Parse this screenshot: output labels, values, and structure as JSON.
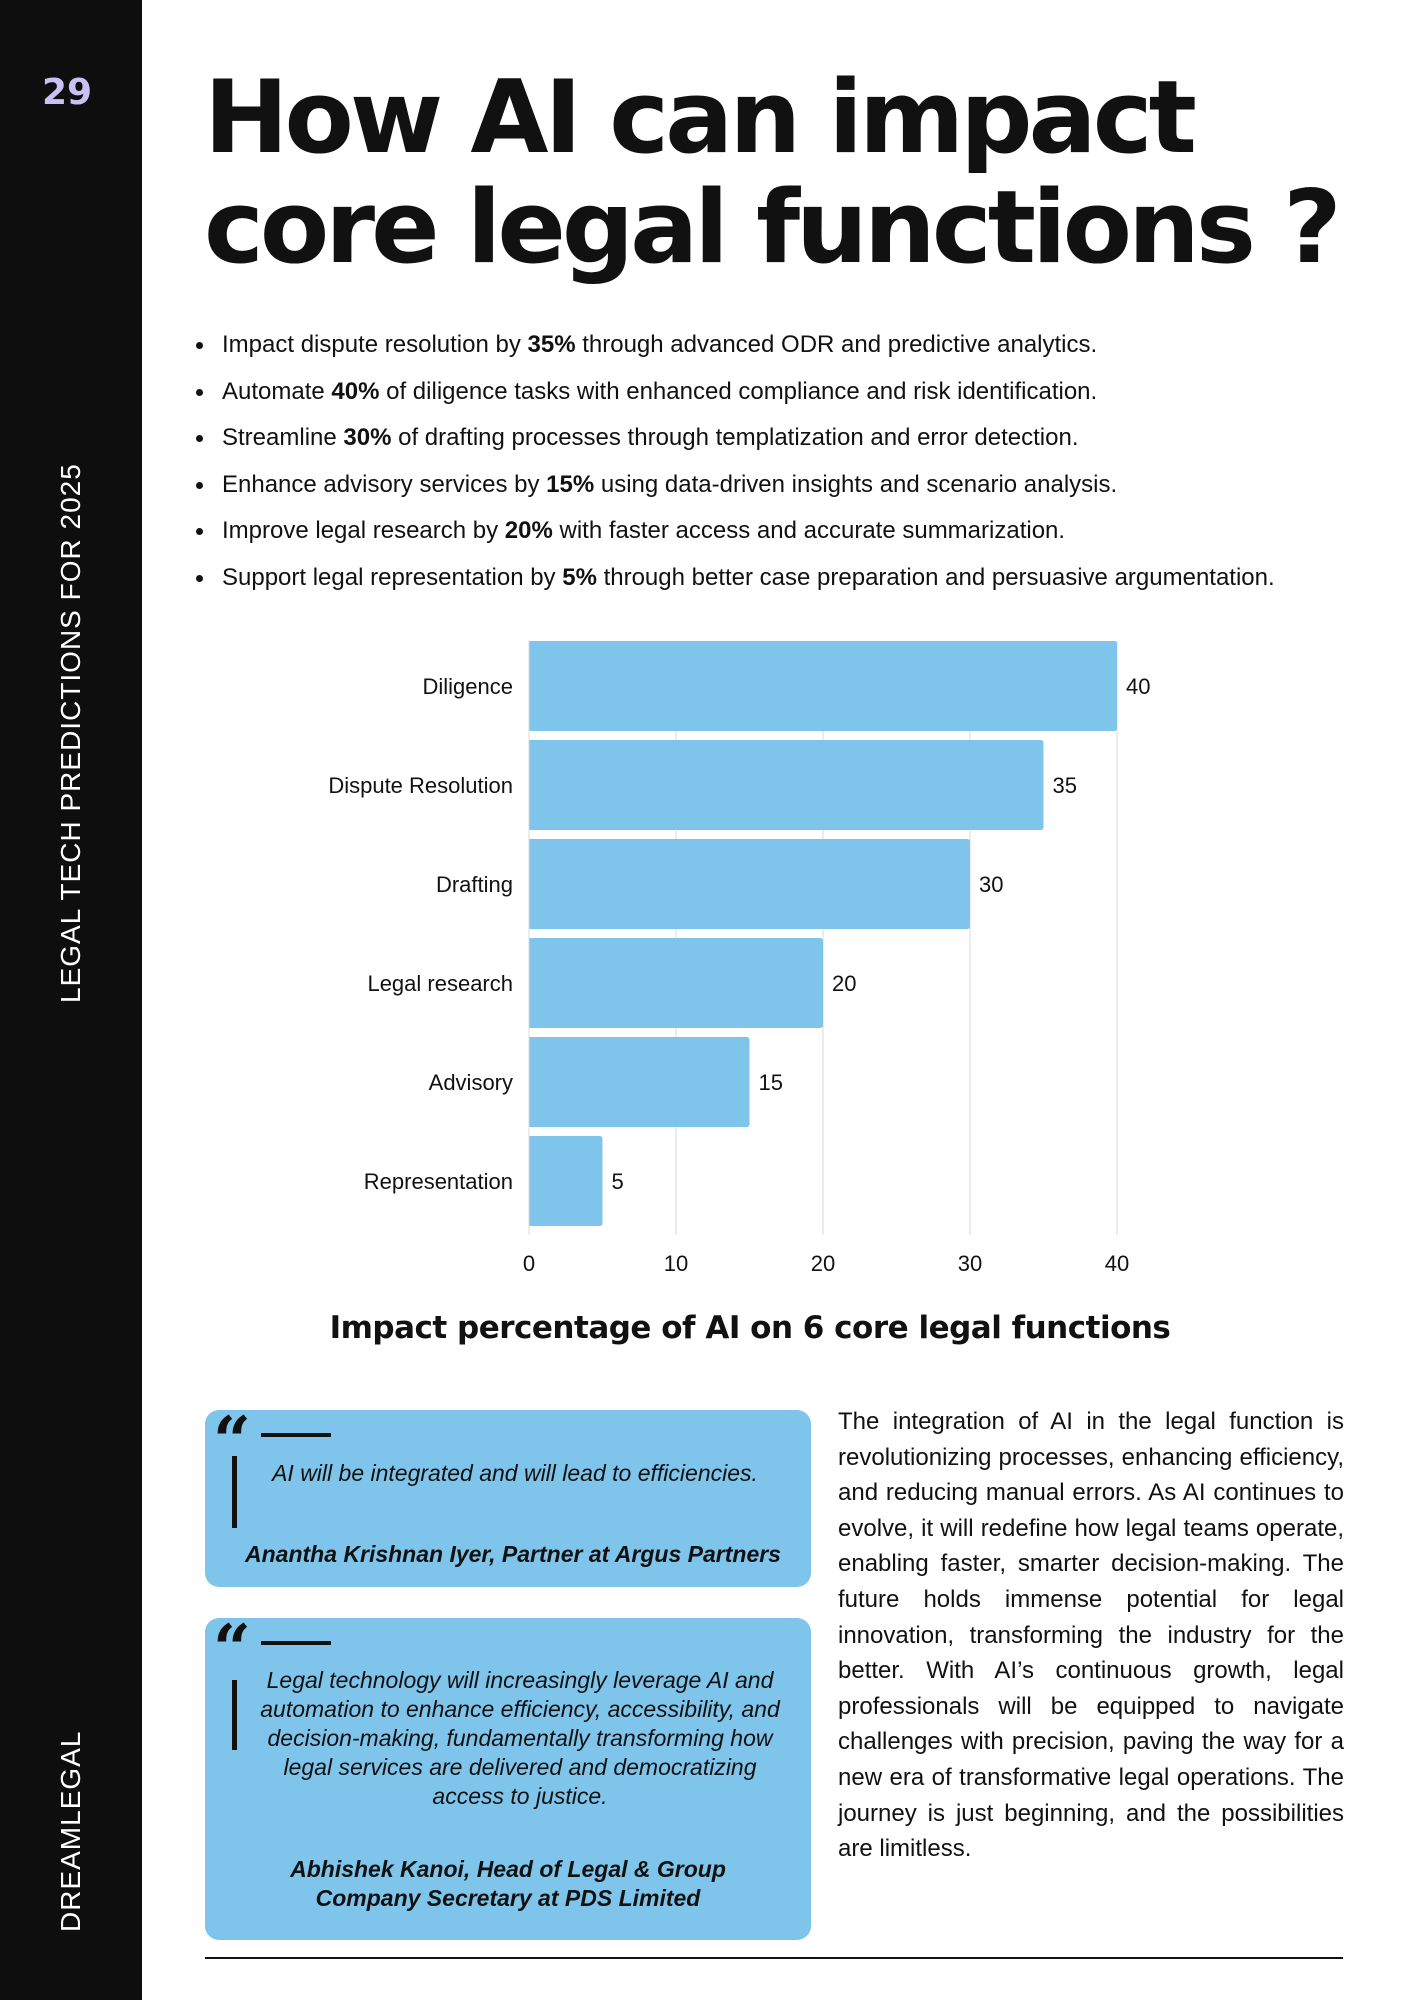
{
  "page": {
    "number": "29",
    "side_series": "LEGAL TECH PREDICTIONS FOR 2025",
    "side_brand": "DREAMLEGAL",
    "title_line1": "How AI can impact",
    "title_line2": "core legal functions ?"
  },
  "bullets": [
    {
      "pre": "Impact dispute resolution by ",
      "bold": "35%",
      "post": " through advanced ODR and predictive analytics."
    },
    {
      "pre": "Automate ",
      "bold": "40%",
      "post": " of diligence tasks with enhanced compliance and risk identification."
    },
    {
      "pre": "Streamline ",
      "bold": "30%",
      "post": " of drafting processes through templatization and error detection."
    },
    {
      "pre": "Enhance advisory services by ",
      "bold": "15%",
      "post": " using data-driven insights and scenario analysis."
    },
    {
      "pre": "Improve legal research by ",
      "bold": "20%",
      "post": " with faster access and accurate summarization."
    },
    {
      "pre": "Support legal representation by ",
      "bold": "5%",
      "post": " through better case preparation and persuasive argumentation."
    }
  ],
  "chart_data": {
    "type": "bar",
    "orientation": "horizontal",
    "categories": [
      "Diligence",
      "Dispute Resolution",
      "Drafting",
      "Legal research",
      "Advisory",
      "Representation"
    ],
    "values": [
      40,
      35,
      30,
      20,
      15,
      5
    ],
    "data_labels": [
      "40",
      "35",
      "30",
      "20",
      "15",
      "5"
    ],
    "xlim": [
      0,
      40
    ],
    "xticks": [
      "0",
      "10",
      "20",
      "30",
      "40"
    ],
    "title": "Impact percentage of AI on 6 core legal functions",
    "grid": true,
    "bar_color": "#7fc4eb"
  },
  "quotes": [
    {
      "text": "AI will be integrated and will lead to efficiencies.",
      "author": "Anantha Krishnan Iyer, Partner at Argus Partners"
    },
    {
      "text": "Legal technology will increasingly leverage AI and automation to enhance efficiency, accessibility, and decision-making, fundamentally transforming how legal services are delivered and democratizing access to justice.",
      "author": "Abhishek Kanoi, Head of Legal & Group Company Secretary at PDS Limited"
    }
  ],
  "body_paragraph": "The integration of AI in the legal function is revolutionizing processes, enhancing efficiency, and reducing manual errors. As AI continues to evolve, it will redefine how legal teams operate, enabling faster, smarter decision-making. The future holds immense potential for legal innovation, transforming the industry for the better. With AI’s continuous growth, legal professionals will be equipped to navigate challenges with precision, paving the way for a new era of transformative legal operations. The journey is just beginning, and the possibilities are limitless.",
  "colors": {
    "sidebar": "#0e0e0e",
    "page_number": "#c9c1f5",
    "accent_blue": "#7fc4eb",
    "text": "#111111"
  }
}
